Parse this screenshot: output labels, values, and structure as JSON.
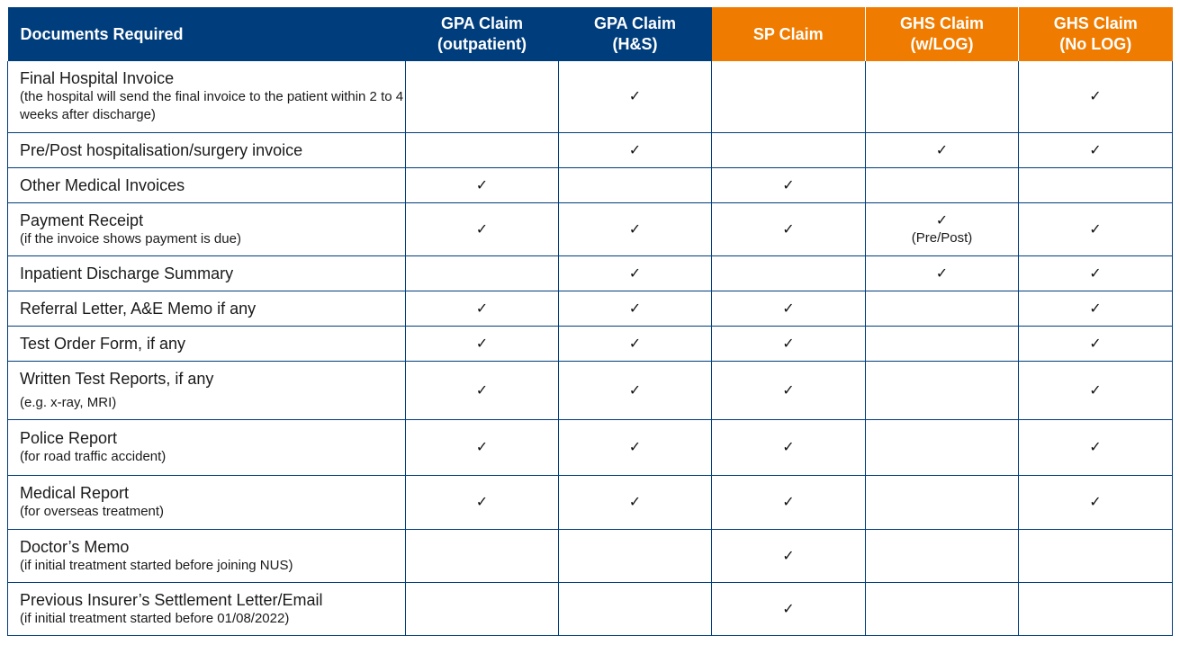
{
  "headers": {
    "documents": "Documents Required",
    "gpa_outpatient": [
      "GPA Claim",
      "(outpatient)"
    ],
    "gpa_hs": [
      "GPA Claim",
      "(H&S)"
    ],
    "sp": "SP Claim",
    "ghs_wlog": [
      "GHS Claim",
      "(w/LOG)"
    ],
    "ghs_nolog": [
      "GHS Claim",
      "(No LOG)"
    ]
  },
  "colors": {
    "navy": "#003d7c",
    "orange": "#ef7c00"
  },
  "tick_glyph": "✓",
  "rows": [
    {
      "title": "Final Hospital Invoice",
      "note": "(the hospital will send the final invoice to the patient within 2 to 4 weeks after discharge)",
      "checks": [
        false,
        true,
        false,
        false,
        true
      ]
    },
    {
      "title": "Pre/Post hospitalisation/surgery invoice",
      "note": "",
      "checks": [
        false,
        true,
        false,
        true,
        true
      ]
    },
    {
      "title": "Other Medical Invoices",
      "note": "",
      "checks": [
        true,
        false,
        true,
        false,
        false
      ]
    },
    {
      "title": "Payment Receipt",
      "note": "(if the invoice shows payment is due)",
      "checks": [
        true,
        true,
        true,
        true,
        true
      ],
      "cell_notes": [
        "",
        "",
        "",
        "(Pre/Post)",
        ""
      ]
    },
    {
      "title": "Inpatient Discharge Summary",
      "note": "",
      "checks": [
        false,
        true,
        false,
        true,
        true
      ]
    },
    {
      "title": "Referral Letter, A&E Memo if any",
      "note": "",
      "checks": [
        true,
        true,
        true,
        false,
        true
      ]
    },
    {
      "title": "Test Order Form, if any",
      "note": "",
      "checks": [
        true,
        true,
        true,
        false,
        true
      ]
    },
    {
      "title": "Written Test Reports, if any",
      "note": "(e.g. x-ray, MRI)",
      "checks": [
        true,
        true,
        true,
        false,
        true
      ]
    },
    {
      "title": "Police Report",
      "note": "(for road traffic accident)",
      "checks": [
        true,
        true,
        true,
        false,
        true
      ]
    },
    {
      "title": "Medical Report",
      "note": "(for overseas treatment)",
      "checks": [
        true,
        true,
        true,
        false,
        true
      ]
    },
    {
      "title": "Doctor’s Memo",
      "note": "(if initial treatment started before joining NUS)",
      "checks": [
        false,
        false,
        true,
        false,
        false
      ]
    },
    {
      "title": "Previous Insurer’s Settlement Letter/Email",
      "note": "(if initial treatment started before 01/08/2022)",
      "checks": [
        false,
        false,
        true,
        false,
        false
      ]
    }
  ]
}
